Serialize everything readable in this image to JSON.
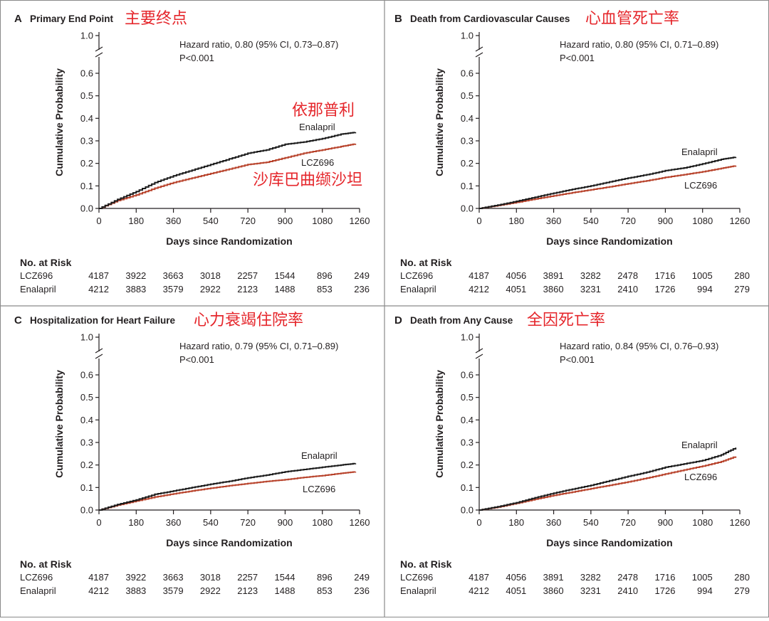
{
  "chart_data": [
    {
      "type": "line",
      "letter": "A",
      "title": "Primary End Point",
      "annotation": "主要终点",
      "extra_annotations": [
        "依那普利",
        "沙库巴曲缬沙坦"
      ],
      "hazard_text": "Hazard ratio, 0.80 (95% CI, 0.73–0.87)",
      "p_text": "P<0.001",
      "xlabel": "Days since Randomization",
      "ylabel": "Cumulative Probability",
      "xlim": [
        0,
        1260
      ],
      "ylim": [
        0,
        1.0
      ],
      "x_ticks": [
        "0",
        "180",
        "360",
        "540",
        "720",
        "900",
        "1080",
        "1260"
      ],
      "y_ticks": [
        "0.0",
        "0.1",
        "0.2",
        "0.3",
        "0.4",
        "0.5",
        "0.6",
        "1.0"
      ],
      "x": [
        0,
        90,
        180,
        270,
        360,
        450,
        540,
        630,
        720,
        810,
        900,
        990,
        1080,
        1170,
        1240
      ],
      "series": [
        {
          "name": "Enalapril",
          "color": "#1c1c1c",
          "values": [
            0,
            0.04,
            0.075,
            0.115,
            0.145,
            0.17,
            0.195,
            0.22,
            0.245,
            0.26,
            0.285,
            0.295,
            0.31,
            0.33,
            0.338
          ]
        },
        {
          "name": "LCZ696",
          "color": "#b8432c",
          "values": [
            0,
            0.035,
            0.06,
            0.09,
            0.115,
            0.135,
            0.155,
            0.175,
            0.195,
            0.205,
            0.225,
            0.245,
            0.26,
            0.275,
            0.287
          ]
        }
      ],
      "risk_header": "No. at Risk",
      "risk": [
        {
          "name": "LCZ696",
          "values": [
            "4187",
            "3922",
            "3663",
            "3018",
            "2257",
            "1544",
            "896",
            "249"
          ]
        },
        {
          "name": "Enalapril",
          "values": [
            "4212",
            "3883",
            "3579",
            "2922",
            "2123",
            "1488",
            "853",
            "236"
          ]
        }
      ]
    },
    {
      "type": "line",
      "letter": "B",
      "title": "Death from Cardiovascular Causes",
      "annotation": "心血管死亡率",
      "extra_annotations": [],
      "hazard_text": "Hazard ratio, 0.80 (95% CI, 0.71–0.89)",
      "p_text": "P<0.001",
      "xlabel": "Days since Randomization",
      "ylabel": "Cumulative Probability",
      "xlim": [
        0,
        1260
      ],
      "ylim": [
        0,
        1.0
      ],
      "x_ticks": [
        "0",
        "180",
        "360",
        "540",
        "720",
        "900",
        "1080",
        "1260"
      ],
      "y_ticks": [
        "0.0",
        "0.1",
        "0.2",
        "0.3",
        "0.4",
        "0.5",
        "0.6",
        "1.0"
      ],
      "x": [
        0,
        90,
        180,
        270,
        360,
        450,
        540,
        630,
        720,
        810,
        900,
        990,
        1080,
        1170,
        1240
      ],
      "series": [
        {
          "name": "Enalapril",
          "color": "#1c1c1c",
          "values": [
            0,
            0.015,
            0.032,
            0.05,
            0.068,
            0.085,
            0.1,
            0.118,
            0.135,
            0.15,
            0.168,
            0.18,
            0.198,
            0.218,
            0.228
          ]
        },
        {
          "name": "LCZ696",
          "color": "#b8432c",
          "values": [
            0,
            0.013,
            0.027,
            0.042,
            0.056,
            0.07,
            0.083,
            0.096,
            0.11,
            0.123,
            0.138,
            0.15,
            0.163,
            0.178,
            0.19
          ]
        }
      ],
      "risk_header": "No. at Risk",
      "risk": [
        {
          "name": "LCZ696",
          "values": [
            "4187",
            "4056",
            "3891",
            "3282",
            "2478",
            "1716",
            "1005",
            "280"
          ]
        },
        {
          "name": "Enalapril",
          "values": [
            "4212",
            "4051",
            "3860",
            "3231",
            "2410",
            "1726",
            "994",
            "279"
          ]
        }
      ]
    },
    {
      "type": "line",
      "letter": "C",
      "title": "Hospitalization for Heart Failure",
      "annotation": "心力衰竭住院率",
      "extra_annotations": [],
      "hazard_text": "Hazard ratio, 0.79 (95% CI, 0.71–0.89)",
      "p_text": "P<0.001",
      "xlabel": "Days since Randomization",
      "ylabel": "Cumulative Probability",
      "xlim": [
        0,
        1260
      ],
      "ylim": [
        0,
        1.0
      ],
      "x_ticks": [
        "0",
        "180",
        "360",
        "540",
        "720",
        "900",
        "1080",
        "1260"
      ],
      "y_ticks": [
        "0.0",
        "0.1",
        "0.2",
        "0.3",
        "0.4",
        "0.5",
        "0.6",
        "1.0"
      ],
      "x": [
        0,
        90,
        180,
        270,
        360,
        450,
        540,
        630,
        720,
        810,
        900,
        990,
        1080,
        1170,
        1240
      ],
      "series": [
        {
          "name": "Enalapril",
          "color": "#1c1c1c",
          "values": [
            0,
            0.025,
            0.045,
            0.07,
            0.085,
            0.1,
            0.115,
            0.128,
            0.143,
            0.155,
            0.17,
            0.18,
            0.19,
            0.2,
            0.207
          ]
        },
        {
          "name": "LCZ696",
          "color": "#b8432c",
          "values": [
            0,
            0.022,
            0.04,
            0.058,
            0.072,
            0.085,
            0.097,
            0.108,
            0.118,
            0.127,
            0.135,
            0.145,
            0.153,
            0.163,
            0.17
          ]
        }
      ],
      "risk_header": "No. at Risk",
      "risk": [
        {
          "name": "LCZ696",
          "values": [
            "4187",
            "3922",
            "3663",
            "3018",
            "2257",
            "1544",
            "896",
            "249"
          ]
        },
        {
          "name": "Enalapril",
          "values": [
            "4212",
            "3883",
            "3579",
            "2922",
            "2123",
            "1488",
            "853",
            "236"
          ]
        }
      ]
    },
    {
      "type": "line",
      "letter": "D",
      "title": "Death from Any Cause",
      "annotation": "全因死亡率",
      "extra_annotations": [],
      "hazard_text": "Hazard ratio, 0.84 (95% CI, 0.76–0.93)",
      "p_text": "P<0.001",
      "xlabel": "Days since Randomization",
      "ylabel": "Cumulative Probability",
      "xlim": [
        0,
        1260
      ],
      "ylim": [
        0,
        1.0
      ],
      "x_ticks": [
        "0",
        "180",
        "360",
        "540",
        "720",
        "900",
        "1080",
        "1260"
      ],
      "y_ticks": [
        "0.0",
        "0.1",
        "0.2",
        "0.3",
        "0.4",
        "0.5",
        "0.6",
        "1.0"
      ],
      "x": [
        0,
        90,
        180,
        270,
        360,
        450,
        540,
        630,
        720,
        810,
        900,
        990,
        1080,
        1170,
        1240
      ],
      "series": [
        {
          "name": "Enalapril",
          "color": "#1c1c1c",
          "values": [
            0,
            0.015,
            0.033,
            0.055,
            0.075,
            0.093,
            0.11,
            0.13,
            0.15,
            0.168,
            0.19,
            0.205,
            0.22,
            0.245,
            0.277
          ]
        },
        {
          "name": "LCZ696",
          "color": "#b8432c",
          "values": [
            0,
            0.013,
            0.03,
            0.048,
            0.065,
            0.08,
            0.095,
            0.11,
            0.125,
            0.142,
            0.16,
            0.178,
            0.195,
            0.215,
            0.238
          ]
        }
      ],
      "risk_header": "No. at Risk",
      "risk": [
        {
          "name": "LCZ696",
          "values": [
            "4187",
            "4056",
            "3891",
            "3282",
            "2478",
            "1716",
            "1005",
            "280"
          ]
        },
        {
          "name": "Enalapril",
          "values": [
            "4212",
            "4051",
            "3860",
            "3231",
            "2410",
            "1726",
            "994",
            "279"
          ]
        }
      ]
    }
  ]
}
